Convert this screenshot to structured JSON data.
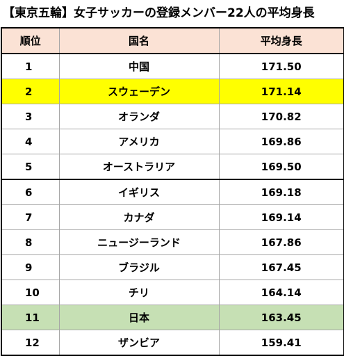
{
  "title": "【東京五輪】女子サッカーの登録メンバー22人の平均身長",
  "colors": {
    "header_bg": "#fbe2d5",
    "highlight_sweden": "#ffff00",
    "highlight_japan": "#c6e0b4"
  },
  "table": {
    "headers": [
      "順位",
      "国名",
      "平均身長"
    ],
    "rows": [
      {
        "rank": "1",
        "country": "中国",
        "height": "171.50",
        "highlight": ""
      },
      {
        "rank": "2",
        "country": "スウェーデン",
        "height": "171.14",
        "highlight": "#ffff00"
      },
      {
        "rank": "3",
        "country": "オランダ",
        "height": "170.82",
        "highlight": ""
      },
      {
        "rank": "4",
        "country": "アメリカ",
        "height": "169.86",
        "highlight": ""
      },
      {
        "rank": "5",
        "country": "オーストラリア",
        "height": "169.50",
        "highlight": ""
      },
      {
        "rank": "6",
        "country": "イギリス",
        "height": "169.18",
        "highlight": ""
      },
      {
        "rank": "7",
        "country": "カナダ",
        "height": "169.14",
        "highlight": ""
      },
      {
        "rank": "8",
        "country": "ニュージーランド",
        "height": "167.86",
        "highlight": ""
      },
      {
        "rank": "9",
        "country": "ブラジル",
        "height": "167.45",
        "highlight": ""
      },
      {
        "rank": "10",
        "country": "チリ",
        "height": "164.14",
        "highlight": ""
      },
      {
        "rank": "11",
        "country": "日本",
        "height": "163.45",
        "highlight": "#c6e0b4"
      },
      {
        "rank": "12",
        "country": "ザンビア",
        "height": "159.41",
        "highlight": ""
      }
    ]
  }
}
